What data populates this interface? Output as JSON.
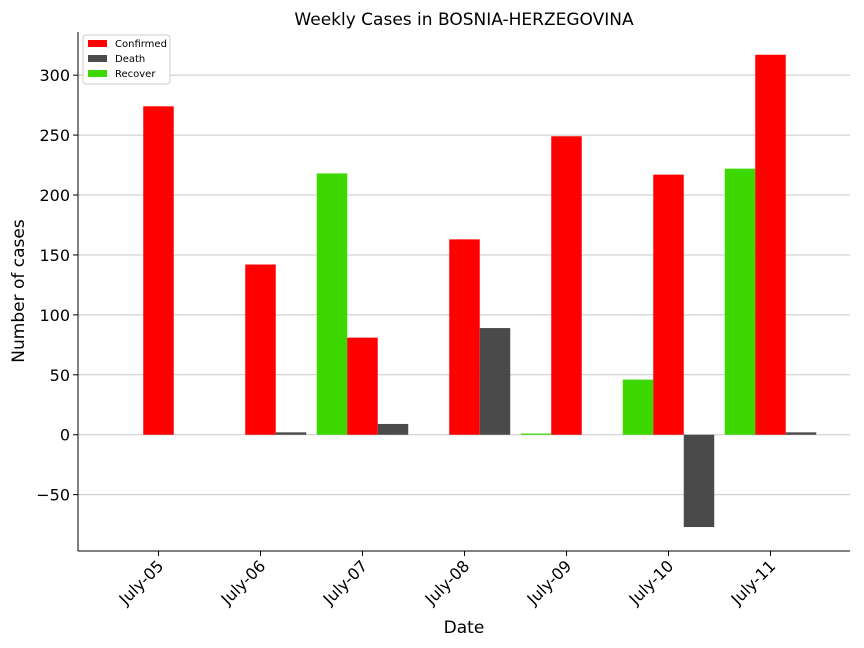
{
  "chart_data": {
    "type": "bar",
    "title": "Weekly Cases in BOSNIA-HERZEGOVINA",
    "xlabel": "Date",
    "ylabel": "Number of cases",
    "categories": [
      "July-05",
      "July-06",
      "July-07",
      "July-08",
      "July-09",
      "July-10",
      "July-11"
    ],
    "ylim": [
      -97,
      336
    ],
    "yticks": [
      -50,
      0,
      50,
      100,
      150,
      200,
      250,
      300
    ],
    "ytick_labels": [
      "−50",
      "0",
      "50",
      "100",
      "150",
      "200",
      "250",
      "300"
    ],
    "grid": "horizontal",
    "legend_position": "top-left",
    "series": [
      {
        "name": "Recover",
        "color": "#3cd800",
        "values": [
          0,
          0,
          218,
          0,
          1,
          46,
          222
        ]
      },
      {
        "name": "Confirmed",
        "color": "#ff0000",
        "values": [
          274,
          142,
          81,
          163,
          249,
          217,
          317
        ]
      },
      {
        "name": "Death",
        "color": "#4a4a4a",
        "values": [
          0,
          2,
          9,
          89,
          0,
          -77,
          2
        ]
      }
    ],
    "legend_order": [
      "Confirmed",
      "Death",
      "Recover"
    ]
  }
}
